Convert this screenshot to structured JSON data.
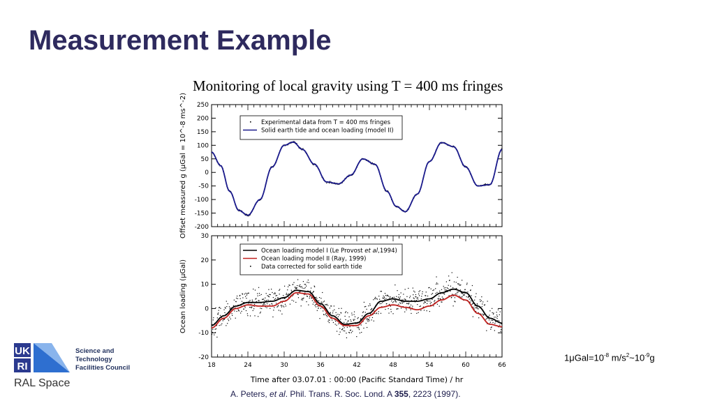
{
  "slide": {
    "title": "Measurement Example",
    "conversion_note": {
      "base": "1μGal=10",
      "exp1": "-8",
      "mid": " m/s",
      "exp2": "2",
      "tail": "~10",
      "exp3": "-9",
      "end": "g"
    },
    "citation": {
      "pre": "A. Peters, ",
      "etal": "et al",
      "mid": ". Phil. Trans. R. Soc. Lond. A ",
      "vol": "355",
      "post": ", 2223 (1997)."
    },
    "logo": {
      "ukri_lines": [
        "UK",
        "RI"
      ],
      "stfc_lines": [
        "Science and",
        "Technology",
        "Facilities Council"
      ],
      "ral": "RAL Space",
      "colors": {
        "dark": "#2b3a8f",
        "mid": "#2e6fd0"
      }
    }
  },
  "chart_data": [
    {
      "type": "line",
      "title": "Monitoring of local gravity using T = 400 ms fringes",
      "xlabel": "",
      "ylabel": "Offset measured g (μGal = 10^-8 ms^-2)",
      "xlim": [
        18,
        66
      ],
      "ylim": [
        -200,
        250
      ],
      "yticks": [
        "250",
        "200",
        "150",
        "100",
        "50",
        "0",
        "-50",
        "-100",
        "-150",
        "-200"
      ],
      "legend_placement": "upper-left",
      "series": [
        {
          "name": "Experimental data from T = 400 ms fringes",
          "style": "dots",
          "color": "#000000"
        },
        {
          "name": "Solid earth tide and ocean loading (model II)",
          "style": "line",
          "color": "#1a1a8c",
          "x": [
            18,
            19.5,
            21,
            22.5,
            24,
            26,
            28,
            30,
            31.5,
            33,
            35,
            37,
            39,
            41,
            43,
            45,
            47,
            48.5,
            50,
            52,
            54,
            56,
            58,
            60,
            62,
            64,
            66
          ],
          "values": [
            75,
            25,
            -70,
            -140,
            -158,
            -100,
            20,
            100,
            112,
            85,
            30,
            -35,
            -42,
            -10,
            50,
            30,
            -70,
            -125,
            -145,
            -80,
            40,
            110,
            95,
            20,
            -50,
            -45,
            85
          ]
        }
      ]
    },
    {
      "type": "line",
      "xlabel": "Time after 03.07.01 : 00:00 (Pacific Standard Time) / hr",
      "ylabel": "Ocean loading (μGal)",
      "xlim": [
        18,
        66
      ],
      "ylim": [
        -20,
        30
      ],
      "xticks": [
        "18",
        "24",
        "30",
        "36",
        "42",
        "48",
        "54",
        "60",
        "66"
      ],
      "yticks": [
        "30",
        "20",
        "10",
        "0",
        "-10",
        "-20"
      ],
      "legend_placement": "upper-left",
      "series": [
        {
          "name": "Ocean loading model I (Le Provost et al, 1994)",
          "legend_pre": "Ocean loading model I (Le Provost ",
          "legend_em": "et al",
          "legend_post": ",1994)",
          "style": "line",
          "color": "#000000",
          "x": [
            18,
            20,
            22,
            24,
            26,
            28,
            30,
            32,
            34,
            36,
            38,
            40,
            42,
            44,
            46,
            48,
            50,
            52,
            54,
            56,
            58,
            60,
            62,
            64,
            66
          ],
          "values": [
            -7,
            -3,
            1,
            2.5,
            2.5,
            3,
            4.5,
            7.5,
            7,
            2,
            -3,
            -6.5,
            -6,
            -2,
            3,
            4,
            3,
            3,
            4,
            6.5,
            8,
            6.5,
            1,
            -4,
            -6
          ]
        },
        {
          "name": "Ocean loading model II (Ray, 1999)",
          "style": "line",
          "color": "#c0201e",
          "x": [
            18,
            20,
            22,
            24,
            26,
            28,
            30,
            32,
            34,
            36,
            38,
            40,
            42,
            44,
            46,
            48,
            50,
            52,
            54,
            56,
            58,
            60,
            62,
            64,
            66
          ],
          "values": [
            -8,
            -4,
            0,
            1.5,
            1,
            1,
            3,
            6.5,
            6,
            1,
            -4,
            -7,
            -7,
            -3,
            0.5,
            1.5,
            0.5,
            -0.5,
            1,
            3.5,
            5.5,
            3.5,
            -2,
            -6.5,
            -7.5
          ]
        },
        {
          "name": "Data corrected for solid earth tide",
          "style": "dots",
          "color": "#000000"
        }
      ]
    }
  ]
}
